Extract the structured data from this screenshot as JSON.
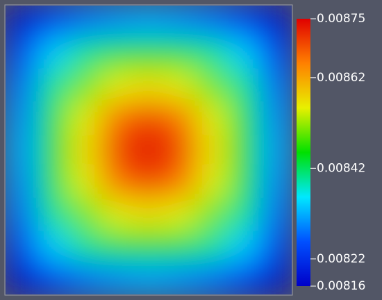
{
  "chart_data": {
    "type": "heatmap",
    "z": [
      [
        0.00817,
        0.00824,
        0.00828,
        0.0083,
        0.00831,
        0.0083,
        0.00828,
        0.00824,
        0.00817
      ],
      [
        0.00824,
        0.00834,
        0.0084,
        0.00843,
        0.00844,
        0.00843,
        0.0084,
        0.00834,
        0.00824
      ],
      [
        0.00828,
        0.0084,
        0.0085,
        0.00855,
        0.00857,
        0.00855,
        0.0085,
        0.0084,
        0.00828
      ],
      [
        0.0083,
        0.00843,
        0.00855,
        0.00866,
        0.0087,
        0.00866,
        0.00855,
        0.00843,
        0.0083
      ],
      [
        0.00831,
        0.00844,
        0.00857,
        0.0087,
        0.00875,
        0.0087,
        0.00857,
        0.00844,
        0.00831
      ],
      [
        0.0083,
        0.00843,
        0.00855,
        0.00866,
        0.0087,
        0.00866,
        0.00855,
        0.00843,
        0.0083
      ],
      [
        0.00828,
        0.0084,
        0.0085,
        0.00855,
        0.00857,
        0.00855,
        0.0085,
        0.0084,
        0.00828
      ],
      [
        0.00824,
        0.00834,
        0.0084,
        0.00843,
        0.00844,
        0.00843,
        0.0084,
        0.00834,
        0.00824
      ],
      [
        0.00817,
        0.00824,
        0.00828,
        0.0083,
        0.00831,
        0.0083,
        0.00828,
        0.00824,
        0.00817
      ]
    ],
    "zlim": [
      0.00816,
      0.00875
    ],
    "zticks": [
      0.00816,
      0.00822,
      0.00842,
      0.00862,
      0.00875
    ],
    "colormap": [
      "#0000c8",
      "#0050ff",
      "#00e8ff",
      "#00e000",
      "#e8f000",
      "#ff8000",
      "#e00000"
    ]
  }
}
